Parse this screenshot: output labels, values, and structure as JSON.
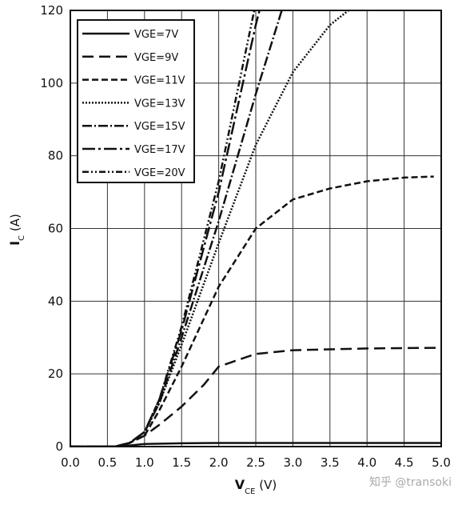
{
  "chart_data": {
    "type": "line",
    "xlabel_parts": [
      "V",
      "CE",
      " (V)"
    ],
    "ylabel_parts": [
      "I",
      "C",
      " (A)"
    ],
    "watermark": "知乎 @transoki",
    "xlim": [
      0,
      5
    ],
    "ylim": [
      0,
      120
    ],
    "xticks": [
      {
        "value": 0,
        "label": "0.0"
      },
      0.5,
      {
        "value": 1,
        "label": "1.0"
      },
      1.5,
      {
        "value": 2,
        "label": "2.0"
      },
      2.5,
      {
        "value": 3,
        "label": "3.0"
      },
      3.5,
      {
        "value": 4,
        "label": "4.0"
      },
      4.5,
      {
        "value": 5,
        "label": "5.0"
      }
    ],
    "yticks": [
      0,
      20,
      40,
      60,
      80,
      100,
      120
    ],
    "grid": true,
    "legend": "upper left",
    "series": [
      {
        "name": "VGE=7V",
        "color": "#111111",
        "dash": "none",
        "x": [
          0,
          0.6,
          0.8,
          1.0,
          1.5,
          2.0,
          3.0,
          5.0
        ],
        "values": [
          0,
          0,
          0.3,
          0.7,
          0.9,
          1.0,
          1.0,
          1.0
        ]
      },
      {
        "name": "VGE=9V",
        "color": "#111111",
        "dash": "14 7",
        "x": [
          0,
          0.6,
          0.8,
          1.0,
          1.2,
          1.5,
          1.8,
          2.0,
          2.5,
          3.0,
          4.0,
          5.0
        ],
        "values": [
          0,
          0,
          1,
          3,
          6,
          11,
          17,
          22,
          25.5,
          26.5,
          27,
          27.2
        ]
      },
      {
        "name": "VGE=11V",
        "color": "#111111",
        "dash": "8 4",
        "x": [
          0,
          0.6,
          0.8,
          1.0,
          1.2,
          1.5,
          2.0,
          2.5,
          3.0,
          3.5,
          4.0,
          4.5,
          4.9
        ],
        "values": [
          0,
          0,
          1,
          3,
          10,
          22,
          44,
          60,
          68,
          71,
          73,
          74,
          74.3
        ]
      },
      {
        "name": "VGE=13V",
        "color": "#111111",
        "dash": "2 2",
        "x": [
          0,
          0.6,
          0.8,
          1.0,
          1.2,
          1.5,
          2.0,
          2.5,
          3.0,
          3.5,
          3.75
        ],
        "values": [
          0,
          0,
          1,
          4,
          12,
          28,
          56,
          83,
          103,
          116,
          120
        ]
      },
      {
        "name": "VGE=15V",
        "color": "#111111",
        "dash": "12 3 2 3",
        "x": [
          0,
          0.6,
          0.8,
          1.0,
          1.2,
          1.5,
          2.0,
          2.5,
          2.85
        ],
        "values": [
          0,
          0,
          1,
          4,
          12,
          30,
          62,
          97,
          120
        ]
      },
      {
        "name": "VGE=17V",
        "color": "#111111",
        "dash": "16 4 3 4",
        "x": [
          0,
          0.6,
          0.8,
          1.0,
          1.2,
          1.5,
          2.0,
          2.5,
          2.55
        ],
        "values": [
          0,
          0,
          1,
          4,
          13,
          32,
          70,
          116,
          120
        ]
      },
      {
        "name": "VGE=20V",
        "color": "#111111",
        "dash": "8 3 2 3 2 3",
        "x": [
          0,
          0.6,
          0.8,
          1.0,
          1.2,
          1.5,
          2.0,
          2.48
        ],
        "values": [
          0,
          0,
          1,
          4,
          13,
          33,
          73,
          120
        ]
      }
    ]
  }
}
